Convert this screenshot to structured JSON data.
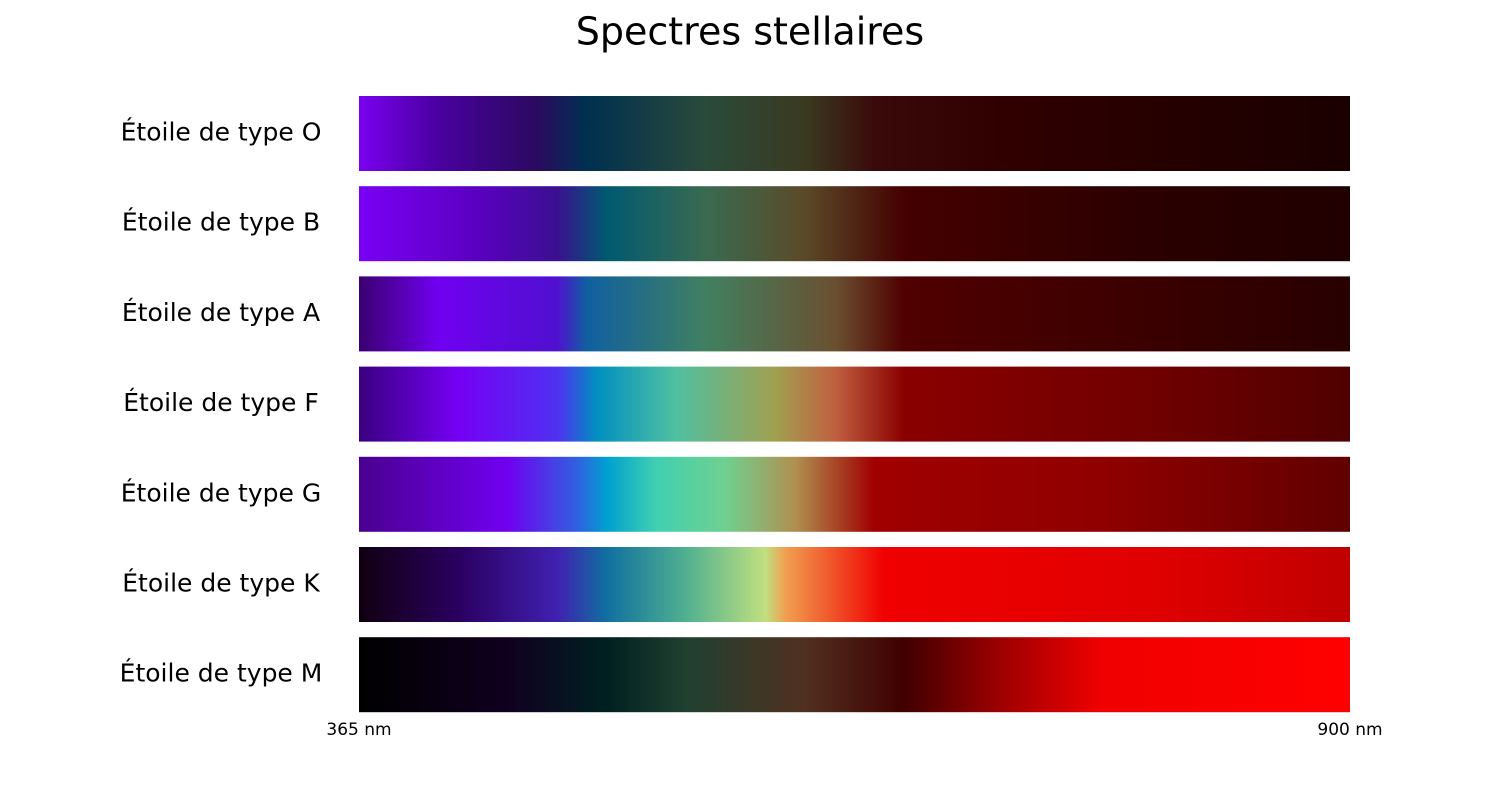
{
  "chart_data": {
    "type": "spectrum",
    "title": "Spectres stellaires",
    "categories": [
      "Étoile de type O",
      "Étoile de type B",
      "Étoile de type A",
      "Étoile de type F",
      "Étoile de type G",
      "Étoile de type K",
      "Étoile de type M"
    ],
    "xlim": [
      365,
      900
    ],
    "xticks": [
      {
        "value": 365,
        "label": "365 nm"
      },
      {
        "value": 900,
        "label": "900 nm"
      }
    ]
  }
}
